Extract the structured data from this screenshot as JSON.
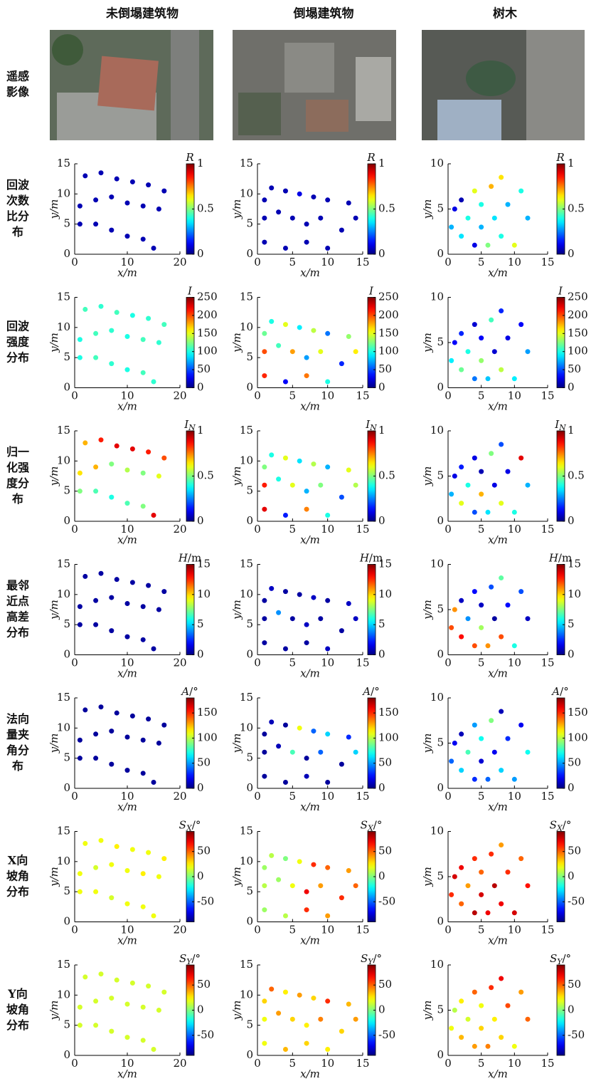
{
  "columns": [
    "未倒塌建筑物",
    "倒塌建筑物",
    "树木"
  ],
  "image_row_label": [
    "遥感",
    "影像"
  ],
  "x_label": "x/m",
  "y_label": "y/m",
  "axes": [
    {
      "xlim": [
        0,
        20
      ],
      "xticks": [
        0,
        10,
        20
      ],
      "ylim": [
        0,
        15
      ],
      "yticks": [
        0,
        5,
        10,
        15
      ],
      "x": [
        2,
        5,
        8,
        11,
        14,
        17,
        1,
        4,
        7,
        10,
        13,
        16,
        1,
        4,
        7,
        10,
        13,
        15
      ],
      "y": [
        13,
        13.5,
        12.5,
        12,
        11.5,
        10.5,
        8,
        9,
        9.5,
        8.5,
        8,
        7.5,
        5,
        5,
        4,
        3,
        2.5,
        1
      ]
    },
    {
      "xlim": [
        0,
        15
      ],
      "xticks": [
        0,
        5,
        10,
        15
      ],
      "ylim": [
        0,
        15
      ],
      "yticks": [
        0,
        5,
        10,
        15
      ],
      "x": [
        1,
        2,
        4,
        6,
        8,
        10,
        13,
        1,
        3,
        5,
        7,
        9,
        12,
        14,
        1,
        4,
        7,
        10
      ],
      "y": [
        9,
        11,
        10.5,
        10,
        9.5,
        9,
        8.5,
        6,
        7,
        6,
        5,
        6,
        4,
        6,
        2,
        1,
        2,
        1
      ]
    },
    {
      "xlim": [
        0,
        15
      ],
      "xticks": [
        0,
        5,
        10,
        15
      ],
      "ylim": [
        0,
        10
      ],
      "yticks": [
        0,
        5,
        10
      ],
      "x": [
        0.5,
        1,
        2,
        2,
        3,
        4,
        4,
        5,
        5,
        6,
        6.5,
        7,
        8,
        8,
        9,
        10,
        11,
        12
      ],
      "y": [
        3,
        5,
        2,
        6,
        4,
        1,
        7,
        3,
        5.5,
        1,
        7.5,
        4,
        8.5,
        2,
        5.5,
        1,
        7,
        4
      ]
    }
  ],
  "rows": [
    {
      "label": [
        "回波",
        "次数",
        "比分",
        "布"
      ],
      "colorbar": {
        "symbol": "R",
        "lim": [
          0,
          1
        ],
        "ticks": [
          0,
          0.5,
          1
        ]
      },
      "c": [
        [
          0.05,
          0.05,
          0.05,
          0.05,
          0.05,
          0.05,
          0.05,
          0.05,
          0.05,
          0.05,
          0.05,
          0.05,
          0.05,
          0.05,
          0.05,
          0.05,
          0.05,
          0.05
        ],
        [
          0.05,
          0.05,
          0.05,
          0.1,
          0.05,
          0.05,
          0.05,
          0.05,
          0.05,
          0.05,
          0.05,
          0.05,
          0.05,
          0.05,
          0.05,
          0.05,
          0.05,
          0.05
        ],
        [
          0.3,
          0.1,
          0.35,
          0.05,
          0.4,
          0.1,
          0.6,
          0.3,
          0.4,
          0.5,
          0.7,
          0.35,
          0.65,
          0.4,
          0.3,
          0.6,
          0.4,
          0.3
        ]
      ]
    },
    {
      "label": [
        "回波",
        "强度",
        "分布"
      ],
      "colorbar": {
        "symbol": "I",
        "lim": [
          0,
          250
        ],
        "ticks": [
          0,
          50,
          100,
          150,
          200,
          250
        ]
      },
      "c": [
        [
          110,
          105,
          110,
          100,
          105,
          110,
          100,
          110,
          105,
          100,
          110,
          105,
          100,
          110,
          105,
          100,
          110,
          105
        ],
        [
          120,
          100,
          150,
          90,
          140,
          60,
          130,
          200,
          110,
          180,
          70,
          150,
          40,
          160,
          210,
          30,
          190,
          100
        ],
        [
          90,
          30,
          120,
          40,
          100,
          60,
          20,
          130,
          30,
          80,
          110,
          20,
          40,
          140,
          25,
          90,
          30,
          70
        ]
      ]
    },
    {
      "label": [
        "归一",
        "化强",
        "度分",
        "布"
      ],
      "colorbar": {
        "symbol": "I",
        "subscript": "N",
        "lim": [
          0,
          1
        ],
        "ticks": [
          0,
          0.5,
          1
        ]
      },
      "c": [
        [
          0.7,
          0.85,
          0.9,
          0.9,
          0.85,
          0.8,
          0.65,
          0.7,
          0.5,
          0.55,
          0.5,
          0.6,
          0.5,
          0.45,
          0.4,
          0.45,
          0.5,
          0.9
        ],
        [
          0.5,
          0.4,
          0.6,
          0.35,
          0.55,
          0.3,
          0.6,
          0.85,
          0.4,
          0.6,
          0.3,
          0.5,
          0.2,
          0.55,
          0.9,
          0.15,
          0.75,
          0.4
        ],
        [
          0.3,
          0.1,
          0.6,
          0.15,
          0.4,
          0.2,
          0.1,
          0.7,
          0.05,
          0.35,
          0.5,
          0.1,
          0.2,
          0.6,
          0.1,
          0.4,
          0.9,
          0.3
        ]
      ]
    },
    {
      "label": [
        "最邻",
        "近点",
        "高差",
        "分布"
      ],
      "colorbar": {
        "symbol": "H",
        "unit": "/m",
        "lim": [
          0,
          15
        ],
        "ticks": [
          0,
          5,
          10,
          15
        ]
      },
      "c": [
        [
          0.5,
          0.5,
          0.5,
          0.5,
          0.5,
          0.5,
          0.5,
          0.5,
          0.5,
          0.5,
          0.5,
          0.5,
          0.5,
          0.5,
          0.5,
          0.5,
          0.5,
          0.5
        ],
        [
          0.5,
          1,
          0.5,
          0.5,
          1,
          0.5,
          1,
          0.5,
          4,
          0.5,
          1,
          0.5,
          0.5,
          1,
          0.5,
          0.5,
          0.5,
          1
        ],
        [
          12,
          11,
          13,
          1,
          4,
          12,
          2,
          8,
          1,
          11,
          3,
          0.5,
          7,
          12,
          2,
          6,
          3,
          1
        ]
      ]
    },
    {
      "label": [
        "法向",
        "量夹",
        "角分",
        "布"
      ],
      "colorbar": {
        "symbol": "A",
        "unit": "/°",
        "lim": [
          0,
          180
        ],
        "ticks": [
          0,
          50,
          100,
          150
        ]
      },
      "c": [
        [
          5,
          5,
          5,
          5,
          5,
          5,
          5,
          5,
          5,
          5,
          5,
          5,
          5,
          5,
          5,
          5,
          5,
          5
        ],
        [
          5,
          10,
          5,
          110,
          40,
          60,
          30,
          5,
          10,
          80,
          5,
          40,
          5,
          60,
          5,
          5,
          10,
          5
        ],
        [
          40,
          20,
          60,
          10,
          80,
          30,
          50,
          15,
          70,
          40,
          90,
          20,
          10,
          60,
          30,
          50,
          20,
          70
        ]
      ]
    },
    {
      "label": [
        "X向",
        "坡角",
        "分布"
      ],
      "colorbar": {
        "symbol": "S",
        "subscript": "X",
        "unit": "/°",
        "lim": [
          -90,
          90
        ],
        "ticks": [
          -50,
          0,
          50
        ]
      },
      "c": [
        [
          20,
          20,
          25,
          20,
          20,
          25,
          20,
          15,
          20,
          20,
          25,
          20,
          20,
          20,
          15,
          20,
          20,
          20
        ],
        [
          5,
          10,
          0,
          20,
          60,
          50,
          40,
          10,
          5,
          20,
          70,
          40,
          60,
          50,
          5,
          10,
          60,
          40
        ],
        [
          60,
          75,
          50,
          70,
          40,
          80,
          60,
          75,
          50,
          70,
          60,
          80,
          40,
          70,
          60,
          75,
          50,
          65
        ]
      ]
    },
    {
      "label": [
        "Y向",
        "坡角",
        "分布"
      ],
      "colorbar": {
        "symbol": "S",
        "subscript": "Y",
        "unit": "/°",
        "lim": [
          -90,
          90
        ],
        "ticks": [
          -50,
          0,
          50
        ]
      },
      "c": [
        [
          15,
          15,
          15,
          15,
          15,
          15,
          15,
          15,
          15,
          15,
          15,
          15,
          15,
          15,
          15,
          15,
          15,
          15
        ],
        [
          30,
          50,
          25,
          40,
          30,
          60,
          35,
          20,
          40,
          30,
          25,
          45,
          30,
          40,
          20,
          35,
          30,
          25
        ],
        [
          20,
          10,
          35,
          25,
          15,
          40,
          50,
          30,
          20,
          45,
          60,
          25,
          70,
          30,
          55,
          20,
          40,
          50
        ]
      ]
    }
  ]
}
